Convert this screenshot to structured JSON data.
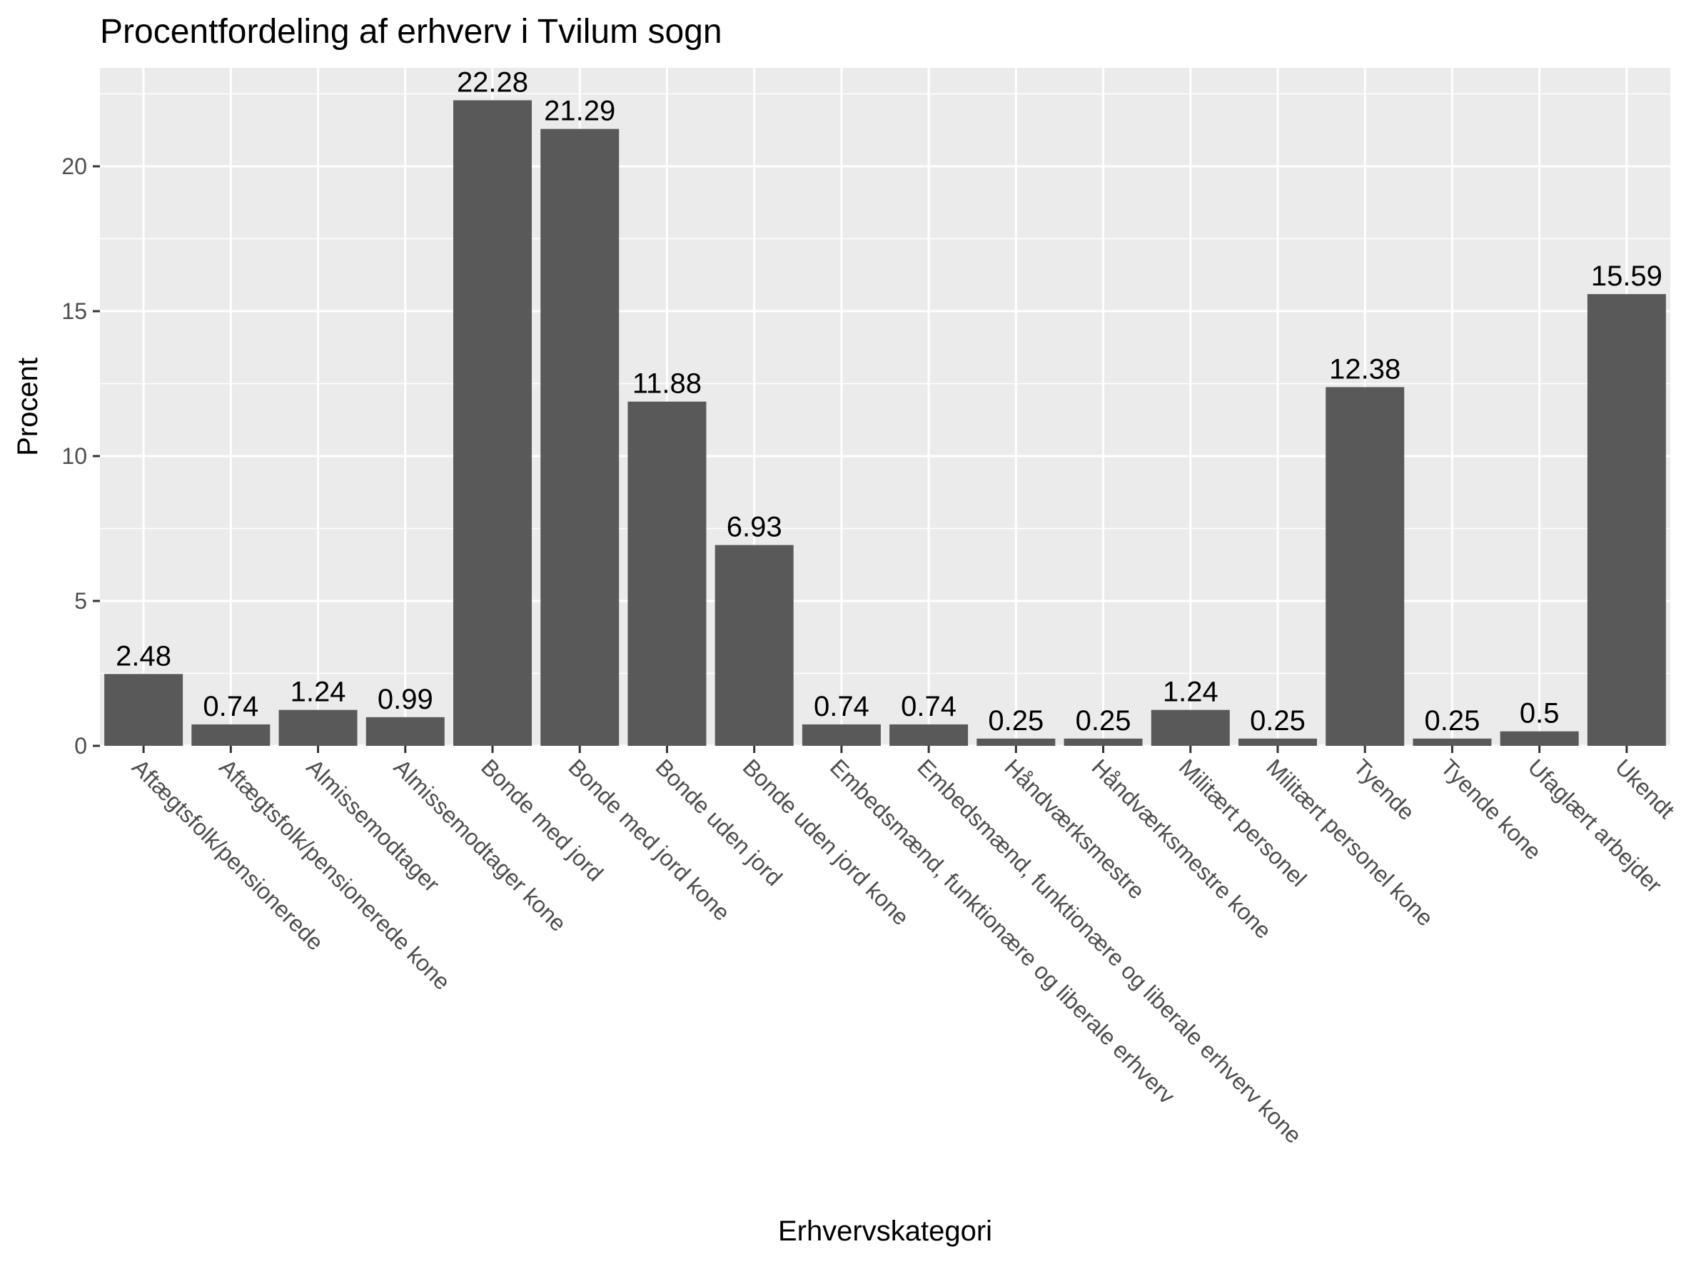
{
  "chart_data": {
    "type": "bar",
    "title": "Procentfordeling af erhverv i Tvilum sogn",
    "xlabel": "Erhvervskategori",
    "ylabel": "Procent",
    "ylim": [
      0,
      23.4
    ],
    "yticks": [
      0,
      5,
      10,
      15,
      20
    ],
    "grid": true,
    "bar_color": "#595959",
    "panel_color": "#ebebeb",
    "categories": [
      "Aftægtsfolk/pensionerede",
      "Aftægtsfolk/pensionerede kone",
      "Almissemodtager",
      "Almissemodtager kone",
      "Bonde med jord",
      "Bonde med jord kone",
      "Bonde uden jord",
      "Bonde uden jord kone",
      "Embedsmænd, funktionære og liberale erhverv",
      "Embedsmænd, funktionære og liberale erhverv kone",
      "Håndværksmestre",
      "Håndværksmestre kone",
      "Militært personel",
      "Militært personel kone",
      "Tyende",
      "Tyende kone",
      "Ufaglært arbejder",
      "Ukendt"
    ],
    "values": [
      2.48,
      0.74,
      1.24,
      0.99,
      22.28,
      21.29,
      11.88,
      6.93,
      0.74,
      0.74,
      0.25,
      0.25,
      1.24,
      0.25,
      12.38,
      0.25,
      0.5,
      15.59
    ],
    "data_labels": [
      "2.48",
      "0.74",
      "1.24",
      "0.99",
      "22.28",
      "21.29",
      "11.88",
      "6.93",
      "0.74",
      "0.74",
      "0.25",
      "0.25",
      "1.24",
      "0.25",
      "12.38",
      "0.25",
      "0.5",
      "15.59"
    ]
  }
}
